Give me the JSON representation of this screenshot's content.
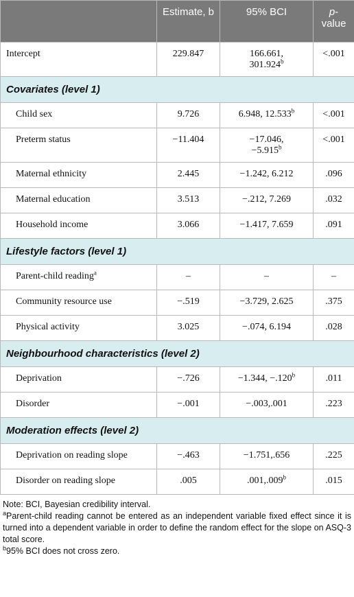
{
  "table": {
    "header": {
      "estimate": "Estimate, b",
      "bci": "95% BCI",
      "p_italic": "p",
      "p_rest": "-value"
    },
    "intercept": {
      "label": "Intercept",
      "estimate": "229.847",
      "bci": "166.661, 301.924",
      "bci_sup": "b",
      "p": "<.001"
    },
    "sections": [
      {
        "title": "Covariates (level 1)",
        "rows": [
          {
            "label": "Child sex",
            "estimate": "9.726",
            "bci": "6.948, 12.533",
            "bci_sup": "b",
            "p": "<.001"
          },
          {
            "label": "Preterm status",
            "estimate": "−11.404",
            "bci": "−17.046, −5.915",
            "bci_sup": "b",
            "p": "<.001"
          },
          {
            "label": "Maternal ethnicity",
            "estimate": "2.445",
            "bci": "−1.242, 6.212",
            "p": ".096"
          },
          {
            "label": "Maternal education",
            "estimate": "3.513",
            "bci": "−.212, 7.269",
            "p": ".032"
          },
          {
            "label": "Household income",
            "estimate": "3.066",
            "bci": "−1.417, 7.659",
            "p": ".091"
          }
        ]
      },
      {
        "title": "Lifestyle factors (level 1)",
        "rows": [
          {
            "label": "Parent-child reading",
            "label_sup": "a",
            "estimate": "–",
            "bci": "–",
            "p": "–"
          },
          {
            "label": "Community resource use",
            "estimate": "−.519",
            "bci": "−3.729, 2.625",
            "p": ".375"
          },
          {
            "label": "Physical activity",
            "estimate": "3.025",
            "bci": "−.074, 6.194",
            "p": ".028"
          }
        ]
      },
      {
        "title": "Neighbourhood characteristics (level 2)",
        "rows": [
          {
            "label": "Deprivation",
            "estimate": "−.726",
            "bci": "−1.344, −.120",
            "bci_sup": "b",
            "p": ".011"
          },
          {
            "label": "Disorder",
            "estimate": "−.001",
            "bci": "−.003,.001",
            "p": ".223"
          }
        ]
      },
      {
        "title": "Moderation effects (level 2)",
        "rows": [
          {
            "label": "Deprivation on reading slope",
            "estimate": "−.463",
            "bci": "−1.751,.656",
            "p": ".225"
          },
          {
            "label": "Disorder on reading slope",
            "estimate": ".005",
            "bci": ".001,.009",
            "bci_sup": "b",
            "p": ".015"
          }
        ]
      }
    ]
  },
  "notes": {
    "note": "Note: BCI, Bayesian credibility interval.",
    "a_mark": "a",
    "a_text": "Parent-child reading cannot be entered as an independent variable fixed effect since it is turned into a dependent variable in order to define the random effect for the slope on ASQ-3 total score.",
    "b_mark": "b",
    "b_text": "95% BCI does not cross zero."
  }
}
